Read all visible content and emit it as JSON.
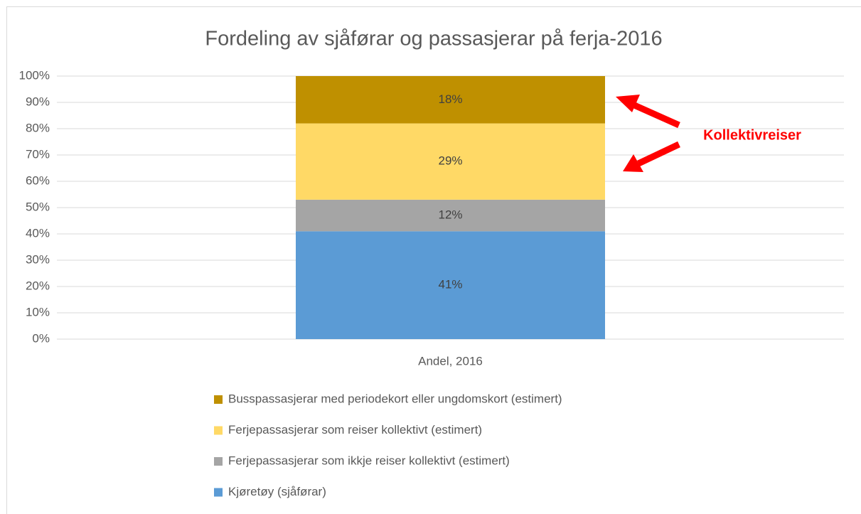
{
  "chart_data": {
    "type": "stacked_bar",
    "title": "Fordeling av sjåførar og passasjerar på ferja-2016",
    "categories": [
      "Andel, 2016"
    ],
    "series": [
      {
        "name": "Kjøretøy (sjåførar)",
        "color": "#5b9bd5",
        "values": [
          41
        ],
        "value_labels": [
          "41%"
        ]
      },
      {
        "name": "Ferjepassasjerar som ikkje reiser kollektivt (estimert)",
        "color": "#a5a5a5",
        "values": [
          12
        ],
        "value_labels": [
          "12%"
        ]
      },
      {
        "name": "Ferjepassasjerar som reiser kollektivt (estimert)",
        "color": "#ffd966",
        "values": [
          29
        ],
        "value_labels": [
          "29%"
        ]
      },
      {
        "name": "Busspassasjerar med periodekort eller ungdomskort (estimert)",
        "color": "#bf9000",
        "values": [
          18
        ],
        "value_labels": [
          "18%"
        ]
      }
    ],
    "ylim": [
      0,
      100
    ],
    "yticks": [
      {
        "value": 0,
        "label": "0%"
      },
      {
        "value": 10,
        "label": "10%"
      },
      {
        "value": 20,
        "label": "20%"
      },
      {
        "value": 30,
        "label": "30%"
      },
      {
        "value": 40,
        "label": "40%"
      },
      {
        "value": 50,
        "label": "50%"
      },
      {
        "value": 60,
        "label": "60%"
      },
      {
        "value": 70,
        "label": "70%"
      },
      {
        "value": 80,
        "label": "80%"
      },
      {
        "value": 90,
        "label": "90%"
      },
      {
        "value": 100,
        "label": "100%"
      }
    ],
    "grid": true,
    "legend": "bottom",
    "annotation": "Kollektivreiser"
  }
}
